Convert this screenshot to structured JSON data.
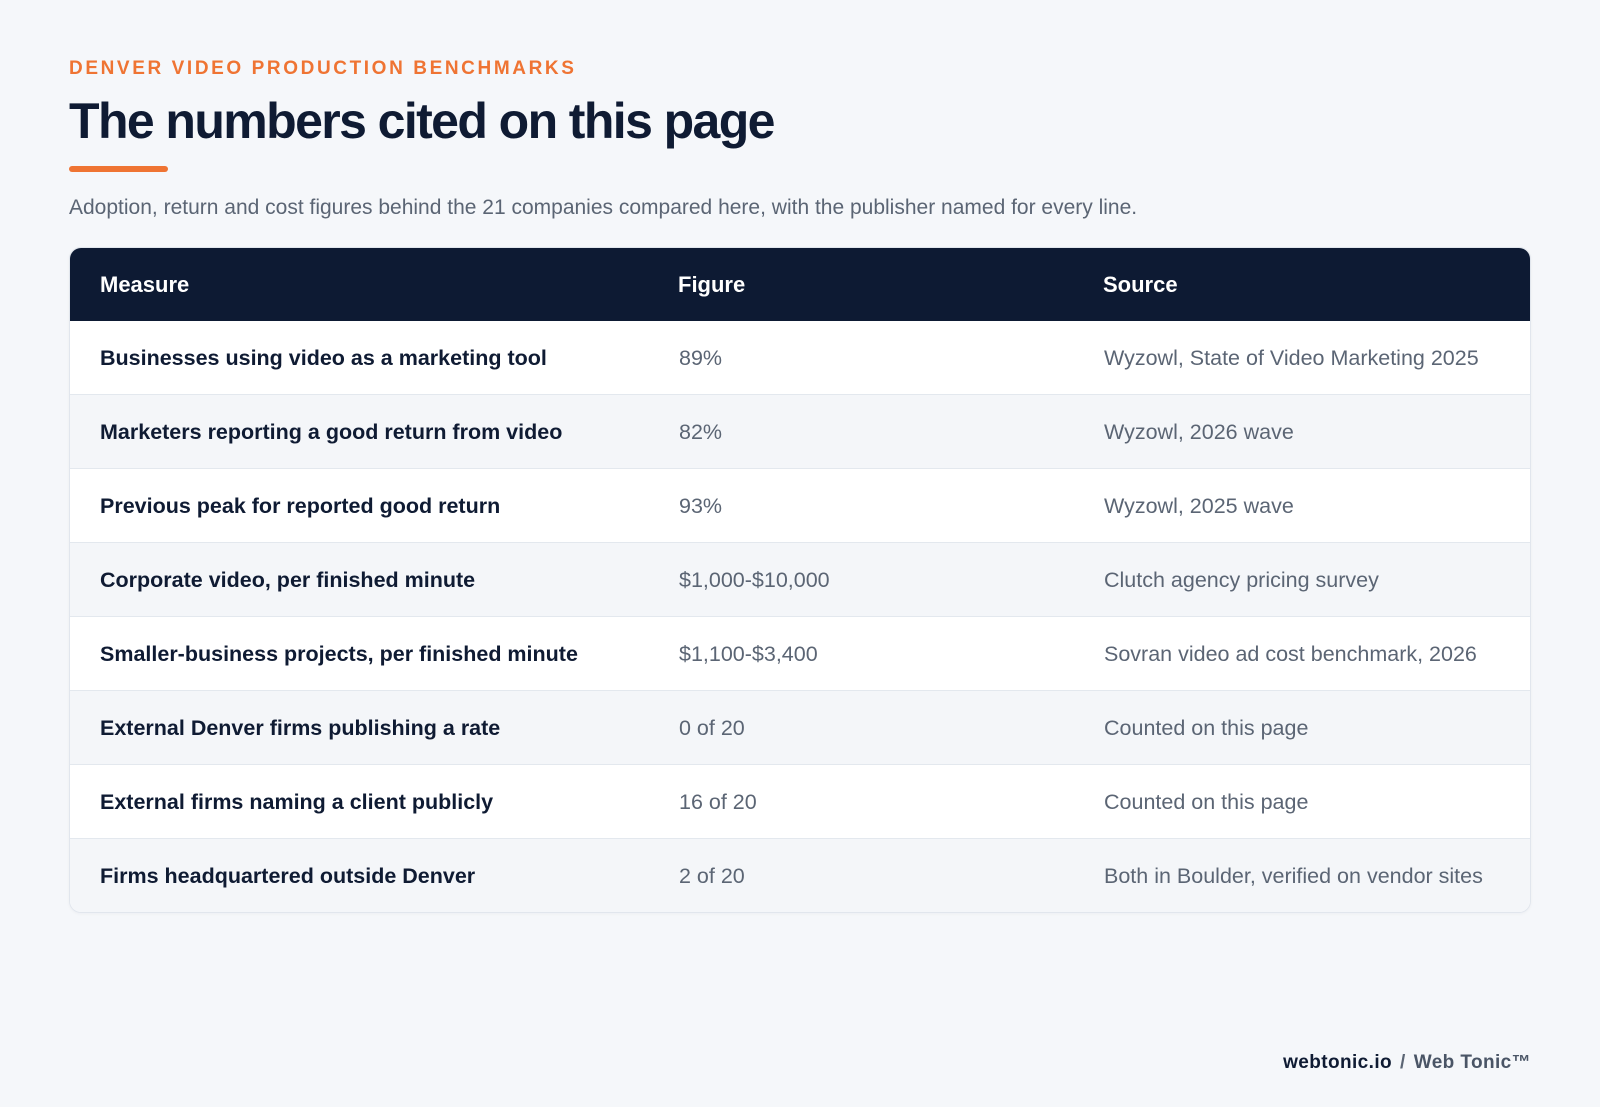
{
  "header": {
    "eyebrow": "DENVER VIDEO PRODUCTION BENCHMARKS",
    "title": "The numbers cited on this page",
    "subtitle": "Adoption, return and cost figures behind the 21 companies compared here, with the publisher named for every line."
  },
  "table": {
    "columns": [
      "Measure",
      "Figure",
      "Source"
    ],
    "rows": [
      {
        "measure": "Businesses using video as a marketing tool",
        "figure": "89%",
        "source": "Wyzowl, State of Video Marketing 2025"
      },
      {
        "measure": "Marketers reporting a good return from video",
        "figure": "82%",
        "source": "Wyzowl, 2026 wave"
      },
      {
        "measure": "Previous peak for reported good return",
        "figure": "93%",
        "source": "Wyzowl, 2025 wave"
      },
      {
        "measure": "Corporate video, per finished minute",
        "figure": "$1,000-$10,000",
        "source": "Clutch agency pricing survey"
      },
      {
        "measure": "Smaller-business projects, per finished minute",
        "figure": "$1,100-$3,400",
        "source": "Sovran video ad cost benchmark, 2026"
      },
      {
        "measure": "External Denver firms publishing a rate",
        "figure": "0 of 20",
        "source": "Counted on this page"
      },
      {
        "measure": "External firms naming a client publicly",
        "figure": "16 of 20",
        "source": "Counted on this page"
      },
      {
        "measure": "Firms headquartered outside Denver",
        "figure": "2 of 20",
        "source": "Both in Boulder, verified on vendor sites"
      }
    ]
  },
  "footer": {
    "domain": "webtonic.io",
    "separator": "/",
    "brand": "Web Tonic™"
  },
  "colors": {
    "accent": "#ef7433",
    "header_bg": "#0d1a33",
    "page_bg": "#f5f7fa",
    "text_dark": "#0f1b33",
    "text_muted": "#5b6574"
  }
}
